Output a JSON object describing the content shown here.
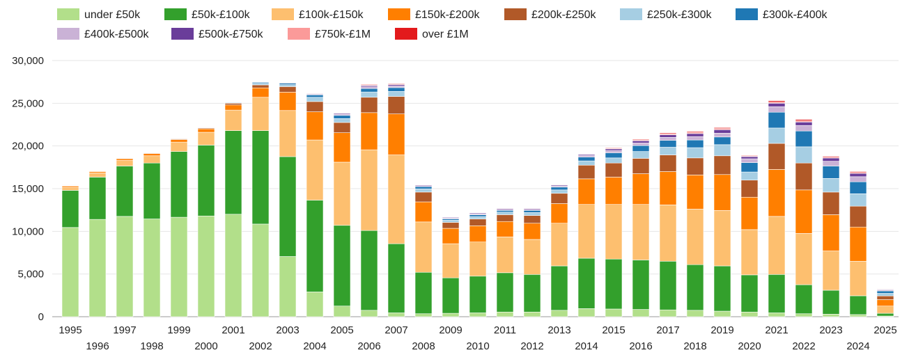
{
  "chart_data": {
    "type": "bar",
    "stacked": true,
    "title": "",
    "xlabel": "",
    "ylabel": "",
    "ylim": [
      0,
      30000
    ],
    "y_ticks": [
      0,
      5000,
      10000,
      15000,
      20000,
      25000,
      30000
    ],
    "y_tick_labels": [
      "0",
      "5,000",
      "10,000",
      "15,000",
      "20,000",
      "25,000",
      "30,000"
    ],
    "grid": true,
    "legend_position": "top",
    "categories": [
      "1995",
      "1996",
      "1997",
      "1998",
      "1999",
      "2000",
      "2001",
      "2002",
      "2003",
      "2004",
      "2005",
      "2006",
      "2007",
      "2008",
      "2009",
      "2010",
      "2011",
      "2012",
      "2013",
      "2014",
      "2015",
      "2016",
      "2017",
      "2018",
      "2019",
      "2020",
      "2021",
      "2022",
      "2023",
      "2024",
      "2025"
    ],
    "series": [
      {
        "name": "under £50k",
        "color": "#b2df8a",
        "values": [
          10450,
          11400,
          11750,
          11450,
          11650,
          11800,
          12000,
          10850,
          7050,
          2900,
          1250,
          750,
          450,
          350,
          400,
          450,
          550,
          550,
          750,
          950,
          900,
          850,
          800,
          750,
          650,
          550,
          450,
          350,
          300,
          250,
          80
        ]
      },
      {
        "name": "£50k-£100k",
        "color": "#33a02c",
        "values": [
          4350,
          4950,
          5900,
          6550,
          7700,
          8300,
          9800,
          10950,
          11700,
          10750,
          9450,
          9350,
          8100,
          4850,
          4150,
          4300,
          4600,
          4400,
          5200,
          5900,
          5850,
          5800,
          5700,
          5350,
          5300,
          4350,
          4500,
          3400,
          2800,
          2200,
          320
        ]
      },
      {
        "name": "£100k-£150k",
        "color": "#fdbf6f",
        "values": [
          350,
          500,
          650,
          850,
          1100,
          1500,
          2400,
          3900,
          5400,
          7050,
          7400,
          9450,
          10400,
          5900,
          4000,
          4000,
          4200,
          4100,
          5000,
          6300,
          6400,
          6500,
          6600,
          6500,
          6500,
          5300,
          6800,
          6000,
          4600,
          4050,
          850
        ]
      },
      {
        "name": "£150k-£200k",
        "color": "#ff7f00",
        "values": [
          150,
          150,
          200,
          250,
          300,
          400,
          600,
          1100,
          2150,
          3300,
          3450,
          4350,
          4800,
          2350,
          1800,
          1900,
          1800,
          1900,
          2300,
          3000,
          3200,
          3600,
          3900,
          4000,
          4200,
          3800,
          5500,
          5100,
          4250,
          4000,
          750
        ]
      },
      {
        "name": "£200k-£250k",
        "color": "#b15928",
        "values": [
          50,
          50,
          60,
          70,
          80,
          100,
          200,
          350,
          650,
          1200,
          1200,
          1800,
          2050,
          1150,
          700,
          800,
          800,
          900,
          1200,
          1600,
          1650,
          1800,
          1950,
          2000,
          2200,
          2000,
          3050,
          3150,
          2650,
          2450,
          430
        ]
      },
      {
        "name": "£250k-£300k",
        "color": "#a6cee3",
        "values": [
          20,
          20,
          30,
          30,
          40,
          40,
          80,
          180,
          230,
          500,
          450,
          620,
          580,
          370,
          250,
          280,
          300,
          350,
          400,
          500,
          600,
          800,
          900,
          1200,
          1300,
          950,
          1800,
          1900,
          1600,
          1450,
          300
        ]
      },
      {
        "name": "£300k-£400k",
        "color": "#1f78b4",
        "values": [
          20,
          20,
          30,
          30,
          40,
          40,
          60,
          120,
          170,
          280,
          380,
          400,
          450,
          260,
          160,
          200,
          200,
          250,
          330,
          450,
          600,
          700,
          800,
          900,
          900,
          1100,
          1850,
          1850,
          1450,
          1400,
          290
        ]
      },
      {
        "name": "£400k-£500k",
        "color": "#cab2d6",
        "values": [
          10,
          10,
          10,
          10,
          10,
          20,
          30,
          60,
          70,
          100,
          150,
          200,
          200,
          120,
          100,
          120,
          120,
          120,
          150,
          170,
          250,
          300,
          350,
          400,
          450,
          450,
          650,
          650,
          560,
          600,
          120
        ]
      },
      {
        "name": "£500k-£750k",
        "color": "#6a3d9a",
        "values": [
          5,
          5,
          5,
          5,
          10,
          10,
          20,
          30,
          50,
          60,
          100,
          140,
          150,
          80,
          80,
          100,
          100,
          100,
          100,
          130,
          200,
          250,
          300,
          350,
          400,
          250,
          400,
          400,
          380,
          380,
          80
        ]
      },
      {
        "name": "£750k-£1M",
        "color": "#fb9a99",
        "values": [
          5,
          5,
          5,
          5,
          5,
          5,
          10,
          20,
          20,
          30,
          60,
          70,
          70,
          40,
          30,
          40,
          40,
          40,
          50,
          50,
          80,
          100,
          120,
          150,
          150,
          80,
          150,
          150,
          100,
          120,
          30
        ]
      },
      {
        "name": "over £1M",
        "color": "#e31a1c",
        "values": [
          5,
          5,
          5,
          5,
          5,
          5,
          10,
          20,
          20,
          30,
          50,
          70,
          70,
          40,
          30,
          40,
          40,
          40,
          50,
          50,
          70,
          80,
          100,
          100,
          100,
          70,
          150,
          150,
          100,
          100,
          20
        ]
      }
    ]
  }
}
